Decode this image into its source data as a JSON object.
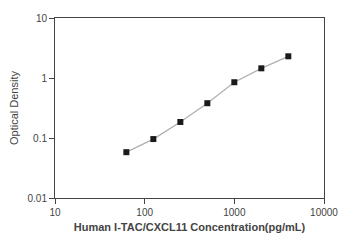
{
  "chart_data": {
    "type": "line",
    "xlabel": "Human I-TAC/CXCL11 Concentration(pg/mL)",
    "ylabel": "Optical Density",
    "x": [
      62.5,
      125,
      250,
      500,
      1000,
      2000,
      4000
    ],
    "series": [
      {
        "type": "line",
        "color": "#b0b0b0",
        "values": [
          0.058,
          0.096,
          0.185,
          0.38,
          0.85,
          1.45,
          2.3
        ]
      },
      {
        "type": "scatter",
        "color": "#1a1a1a",
        "marker": "square",
        "values": [
          0.058,
          0.096,
          0.185,
          0.38,
          0.85,
          1.45,
          2.3
        ]
      }
    ],
    "xlim": [
      10,
      10000
    ],
    "ylim": [
      0.01,
      10
    ],
    "xticks": [
      10,
      100,
      1000,
      10000
    ],
    "yticks": [
      0.01,
      0.1,
      1,
      10
    ],
    "log": true,
    "grid": false
  }
}
